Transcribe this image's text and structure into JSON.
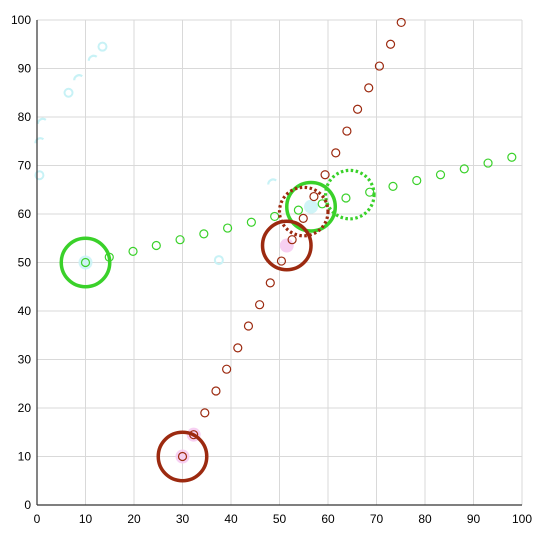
{
  "chart_data": {
    "type": "scatter",
    "title": "",
    "xlabel": "",
    "ylabel": "",
    "xlim": [
      0,
      100
    ],
    "ylim": [
      0,
      100
    ],
    "grid": true,
    "x_ticks": [
      "0",
      "10",
      "20",
      "30",
      "40",
      "50",
      "60",
      "70",
      "80",
      "90",
      "100"
    ],
    "y_ticks": [
      "0",
      "10",
      "20",
      "30",
      "40",
      "50",
      "60",
      "70",
      "80",
      "90",
      "100"
    ],
    "colors": {
      "green": "#3ad12a",
      "red": "#9c2a10",
      "highlight_magenta": "#f6c8f0",
      "highlight_cyan": "#c8f2f6",
      "grid": "#d9d9d9",
      "axis": "#333333"
    },
    "series": [
      {
        "color_key": "green",
        "points": [
          [
            10,
            50
          ],
          [
            14.9,
            51.1
          ],
          [
            19.8,
            52.3
          ],
          [
            24.6,
            53.5
          ],
          [
            29.5,
            54.7
          ],
          [
            34.4,
            55.9
          ],
          [
            39.3,
            57.1
          ],
          [
            44.2,
            58.3
          ],
          [
            49.0,
            59.5
          ],
          [
            53.9,
            60.8
          ],
          [
            58.8,
            62.1
          ],
          [
            63.7,
            63.3
          ],
          [
            68.6,
            64.5
          ],
          [
            73.4,
            65.7
          ],
          [
            78.3,
            66.9
          ],
          [
            83.2,
            68.1
          ],
          [
            88.1,
            69.3
          ],
          [
            93.0,
            70.5
          ],
          [
            97.9,
            71.7
          ]
        ]
      },
      {
        "color_key": "red",
        "points": [
          [
            30,
            10
          ],
          [
            32.3,
            14.5
          ],
          [
            34.6,
            19.0
          ],
          [
            36.9,
            23.5
          ],
          [
            39.1,
            28.0
          ],
          [
            41.4,
            32.4
          ],
          [
            43.6,
            36.9
          ],
          [
            45.9,
            41.3
          ],
          [
            48.1,
            45.8
          ],
          [
            50.4,
            50.3
          ],
          [
            52.6,
            54.7
          ],
          [
            54.9,
            59.1
          ],
          [
            57.1,
            63.6
          ],
          [
            59.4,
            68.1
          ],
          [
            61.6,
            72.6
          ],
          [
            63.9,
            77.1
          ],
          [
            66.1,
            81.6
          ],
          [
            68.4,
            86.0
          ],
          [
            70.6,
            90.5
          ],
          [
            72.9,
            95.0
          ],
          [
            75.1,
            99.5
          ]
        ]
      }
    ],
    "highlight_circles": [
      {
        "color_key": "green",
        "style": "solid",
        "x": 10,
        "y": 50,
        "r": 5
      },
      {
        "color_key": "green",
        "style": "solid",
        "x": 56.5,
        "y": 61.5,
        "r": 5
      },
      {
        "color_key": "green",
        "style": "dotted",
        "x": 64.5,
        "y": 64,
        "r": 5
      },
      {
        "color_key": "red",
        "style": "solid",
        "x": 30,
        "y": 10,
        "r": 5
      },
      {
        "color_key": "red",
        "style": "solid",
        "x": 51.5,
        "y": 53.5,
        "r": 5
      },
      {
        "color_key": "red",
        "style": "dotted",
        "x": 55,
        "y": 60.5,
        "r": 5
      }
    ],
    "faint_highlights": [
      {
        "color_key": "highlight_cyan",
        "x": 0.5,
        "y": 68,
        "shape": "ring"
      },
      {
        "color_key": "highlight_cyan",
        "x": 0.5,
        "y": 75,
        "shape": "arc"
      },
      {
        "color_key": "highlight_cyan",
        "x": 1,
        "y": 79,
        "shape": "arc"
      },
      {
        "color_key": "highlight_cyan",
        "x": 6.5,
        "y": 85,
        "shape": "ring"
      },
      {
        "color_key": "highlight_cyan",
        "x": 8.5,
        "y": 88,
        "shape": "arc"
      },
      {
        "color_key": "highlight_cyan",
        "x": 11.5,
        "y": 92,
        "shape": "arc"
      },
      {
        "color_key": "highlight_cyan",
        "x": 13.5,
        "y": 94.5,
        "shape": "ring"
      },
      {
        "color_key": "highlight_cyan",
        "x": 37.5,
        "y": 50.5,
        "shape": "ring"
      },
      {
        "color_key": "highlight_cyan",
        "x": 48.5,
        "y": 66.5,
        "shape": "arc"
      },
      {
        "color_key": "highlight_magenta",
        "x": 30,
        "y": 10,
        "shape": "glow"
      },
      {
        "color_key": "highlight_magenta",
        "x": 32.3,
        "y": 14.5,
        "shape": "glow"
      },
      {
        "color_key": "highlight_magenta",
        "x": 51.5,
        "y": 53.5,
        "shape": "glow"
      },
      {
        "color_key": "highlight_cyan",
        "x": 10,
        "y": 50,
        "shape": "glow"
      },
      {
        "color_key": "highlight_cyan",
        "x": 56.5,
        "y": 61.5,
        "shape": "glow"
      }
    ]
  }
}
